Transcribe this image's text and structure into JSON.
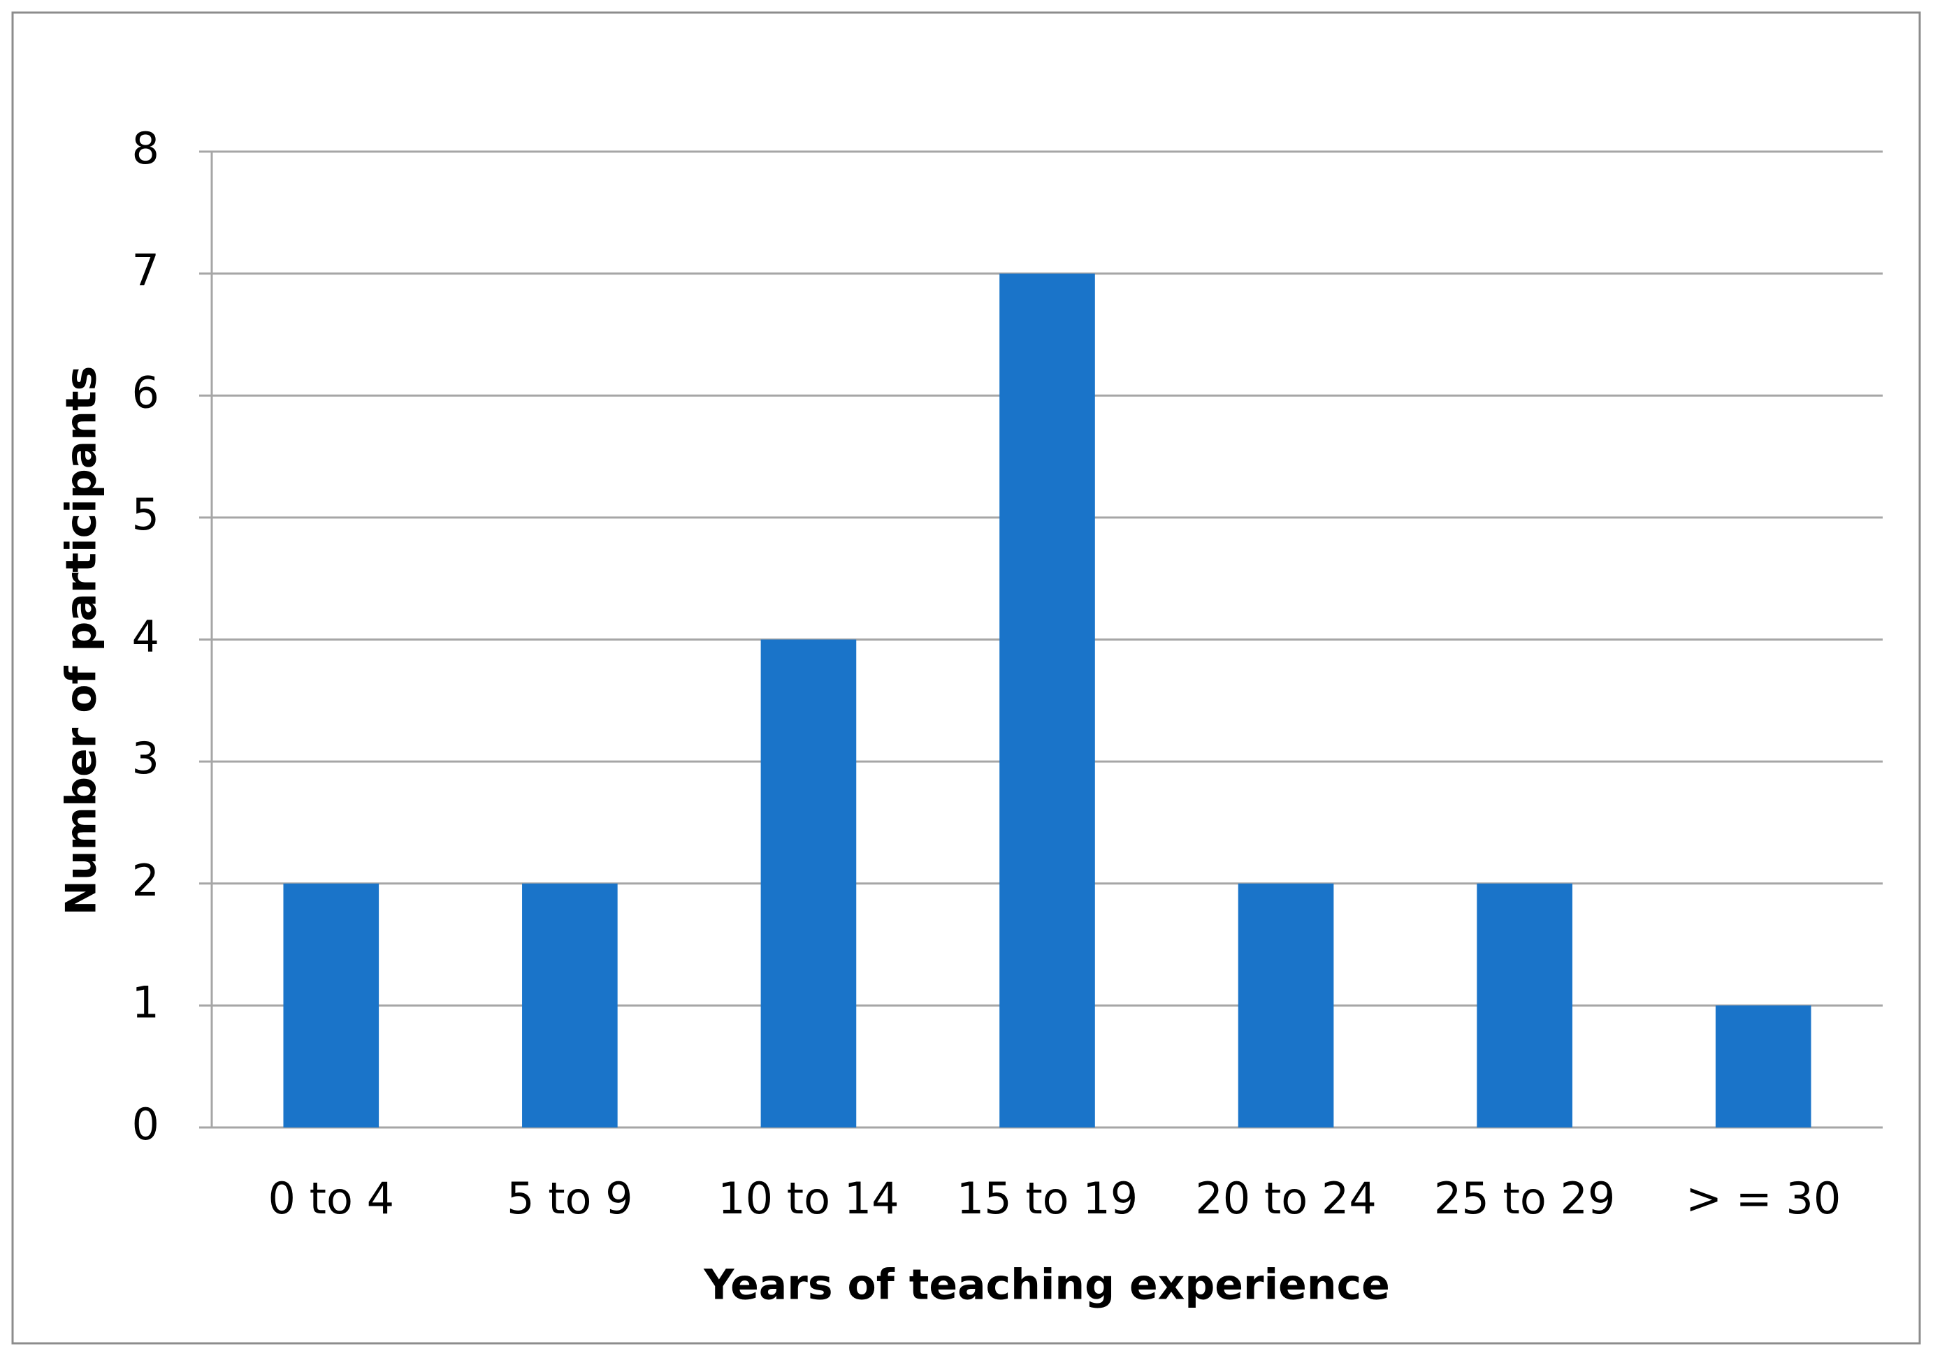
{
  "chart_data": {
    "type": "bar",
    "x_label": "Years of teaching experience",
    "y_label": "Number of participants",
    "categories": [
      "0 to 4",
      "5 to 9",
      "10 to 14",
      "15 to 19",
      "20 to 24",
      "25 to 29",
      "> = 30"
    ],
    "values": [
      2,
      2,
      4,
      7,
      2,
      2,
      1
    ],
    "color": "#1a74c9",
    "ylim": [
      0,
      8
    ],
    "yticks": [
      0,
      1,
      2,
      3,
      4,
      5,
      6,
      7,
      8
    ],
    "grid": true
  }
}
